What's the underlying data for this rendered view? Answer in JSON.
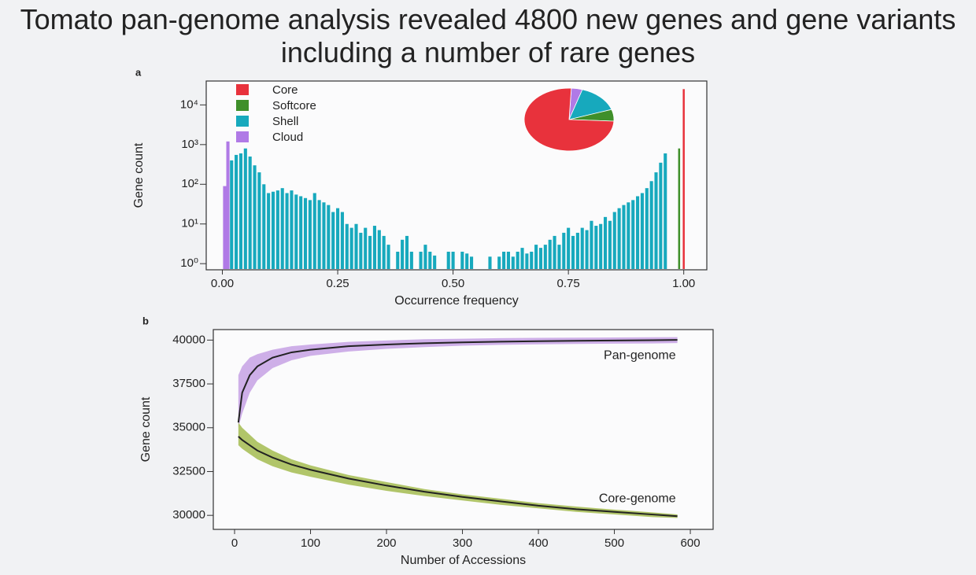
{
  "title": "Tomato pan-genome analysis revealed 4800 new genes and gene variants including a number of rare genes",
  "chart_data": [
    {
      "type": "bar",
      "panel": "a",
      "log_y": true,
      "xlabel": "Occurrence frequency",
      "ylabel": "Gene count",
      "xlim": [
        -0.035,
        1.05
      ],
      "ylim": [
        0.7,
        40000
      ],
      "xticks": [
        {
          "value": 0,
          "label": "0.00"
        },
        {
          "value": 0.25,
          "label": "0.25"
        },
        {
          "value": 0.5,
          "label": "0.50"
        },
        {
          "value": 0.75,
          "label": "0.75"
        },
        {
          "value": 1,
          "label": "1.00"
        }
      ],
      "yticks": [
        {
          "value": 1,
          "label": "10⁰"
        },
        {
          "value": 10,
          "label": "10¹"
        },
        {
          "value": 100,
          "label": "10²"
        },
        {
          "value": 1000,
          "label": "10³"
        },
        {
          "value": 10000,
          "label": "10⁴"
        }
      ],
      "series": [
        {
          "name": "Core",
          "color": "#e8323c",
          "x": [
            1.0
          ],
          "values": [
            25000
          ]
        },
        {
          "name": "Softcore",
          "color": "#3f8f2a",
          "x": [
            0.99
          ],
          "values": [
            800
          ]
        },
        {
          "name": "Shell",
          "color": "#17a9bd",
          "x": [
            0.02,
            0.03,
            0.04,
            0.05,
            0.06,
            0.07,
            0.08,
            0.09,
            0.1,
            0.11,
            0.12,
            0.13,
            0.14,
            0.15,
            0.16,
            0.17,
            0.18,
            0.19,
            0.2,
            0.21,
            0.22,
            0.23,
            0.24,
            0.25,
            0.26,
            0.27,
            0.28,
            0.29,
            0.3,
            0.31,
            0.32,
            0.33,
            0.34,
            0.35,
            0.36,
            0.37,
            0.38,
            0.39,
            0.4,
            0.41,
            0.42,
            0.43,
            0.44,
            0.45,
            0.46,
            0.47,
            0.48,
            0.49,
            0.5,
            0.51,
            0.52,
            0.53,
            0.54,
            0.55,
            0.56,
            0.57,
            0.58,
            0.59,
            0.6,
            0.61,
            0.62,
            0.63,
            0.64,
            0.65,
            0.66,
            0.67,
            0.68,
            0.69,
            0.7,
            0.71,
            0.72,
            0.73,
            0.74,
            0.75,
            0.76,
            0.77,
            0.78,
            0.79,
            0.8,
            0.81,
            0.82,
            0.83,
            0.84,
            0.85,
            0.86,
            0.87,
            0.88,
            0.89,
            0.9,
            0.91,
            0.92,
            0.93,
            0.94,
            0.95,
            0.96
          ],
          "values": [
            400,
            550,
            600,
            800,
            500,
            300,
            200,
            100,
            60,
            65,
            70,
            80,
            60,
            70,
            55,
            50,
            45,
            40,
            60,
            40,
            35,
            30,
            20,
            25,
            20,
            10,
            8,
            10,
            6,
            8,
            5,
            9,
            7,
            5,
            3,
            null,
            2,
            4,
            5,
            2,
            null,
            2,
            3,
            2,
            1.6,
            null,
            null,
            2,
            2,
            null,
            2,
            1.8,
            1.5,
            null,
            null,
            null,
            1.5,
            null,
            1.5,
            2,
            2,
            1.5,
            2,
            2.5,
            1.8,
            2,
            3,
            2.5,
            3,
            4,
            5,
            3,
            6,
            8,
            5,
            6,
            8,
            7,
            12,
            9,
            10,
            15,
            12,
            20,
            25,
            30,
            35,
            40,
            50,
            60,
            80,
            120,
            200,
            350,
            600
          ]
        },
        {
          "name": "Cloud",
          "color": "#b07ae6",
          "x": [
            0.005,
            0.012
          ],
          "values": [
            90,
            1200
          ]
        }
      ],
      "inset_pie": {
        "values": [
          75,
          6,
          15,
          4
        ]
      }
    },
    {
      "type": "line",
      "panel": "b",
      "xlabel": "Number of Accessions",
      "ylabel": "Gene count",
      "xlim": [
        -28,
        630
      ],
      "ylim": [
        29200,
        40600
      ],
      "xticks": [
        0,
        100,
        200,
        300,
        400,
        500,
        600
      ],
      "yticks": [
        30000,
        32500,
        35000,
        37500,
        40000
      ],
      "x": [
        5,
        10,
        20,
        30,
        50,
        75,
        100,
        150,
        200,
        250,
        300,
        350,
        400,
        450,
        500,
        550,
        583
      ],
      "series": [
        {
          "name": "Pan-genome",
          "color": "#222222",
          "band_color": "#c9a6e6",
          "values": [
            35300,
            37000,
            38000,
            38500,
            39000,
            39300,
            39450,
            39650,
            39750,
            39820,
            39870,
            39910,
            39940,
            39960,
            39980,
            39995,
            40010
          ],
          "upper": [
            38000,
            38500,
            39000,
            39200,
            39450,
            39650,
            39750,
            39900,
            39980,
            40050,
            40080,
            40110,
            40130,
            40140,
            40150,
            40160,
            40170
          ],
          "lower": [
            35000,
            35800,
            37000,
            37700,
            38400,
            38850,
            39100,
            39350,
            39500,
            39600,
            39680,
            39730,
            39760,
            39780,
            39800,
            39810,
            39830
          ]
        },
        {
          "name": "Core-genome",
          "color": "#222222",
          "band_color": "#a8bf5a",
          "values": [
            34500,
            34300,
            34000,
            33700,
            33300,
            32900,
            32600,
            32100,
            31700,
            31350,
            31050,
            30800,
            30550,
            30350,
            30200,
            30050,
            29950
          ],
          "upper": [
            35300,
            35000,
            34600,
            34200,
            33700,
            33200,
            32850,
            32300,
            31900,
            31500,
            31200,
            30950,
            30700,
            30500,
            30330,
            30170,
            30050
          ],
          "lower": [
            34000,
            33800,
            33500,
            33200,
            32800,
            32450,
            32200,
            31750,
            31400,
            31100,
            30850,
            30600,
            30400,
            30200,
            30050,
            29900,
            29850
          ]
        }
      ]
    }
  ]
}
